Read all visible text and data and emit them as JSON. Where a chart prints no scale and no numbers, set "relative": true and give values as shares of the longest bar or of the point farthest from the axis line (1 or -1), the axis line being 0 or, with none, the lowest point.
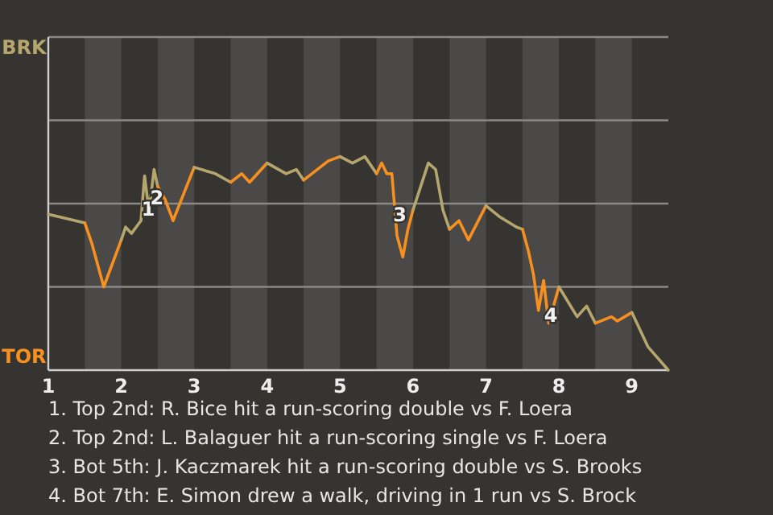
{
  "chart_data": {
    "type": "line",
    "relative": true,
    "xlim": [
      1,
      9.5
    ],
    "xticks": [
      1,
      2,
      3,
      4,
      5,
      6,
      7,
      8,
      9
    ],
    "marker": "none",
    "line_style": "solid",
    "ref_lines": [
      {
        "axis": "y",
        "value": 1.56,
        "label": "BRK",
        "color": "#8a8986"
      },
      {
        "axis": "y",
        "value": 1.17,
        "color": "#8a8986"
      },
      {
        "axis": "y",
        "value": 0.78,
        "color": "#8a8986"
      },
      {
        "axis": "y",
        "value": 0.39,
        "color": "#8a8986"
      }
    ],
    "bands": [
      {
        "axis": "x",
        "from": 1.5,
        "to": 2,
        "color": "#4a4947"
      },
      {
        "axis": "x",
        "from": 2.5,
        "to": 3,
        "color": "#4a4947"
      },
      {
        "axis": "x",
        "from": 3.5,
        "to": 4,
        "color": "#4a4947"
      },
      {
        "axis": "x",
        "from": 4.5,
        "to": 5,
        "color": "#4a4947"
      },
      {
        "axis": "x",
        "from": 5.5,
        "to": 6,
        "color": "#4a4947"
      },
      {
        "axis": "x",
        "from": 6.5,
        "to": 7,
        "color": "#4a4947"
      },
      {
        "axis": "x",
        "from": 7.5,
        "to": 8,
        "color": "#4a4947"
      },
      {
        "axis": "x",
        "from": 8.5,
        "to": 9,
        "color": "#4a4947"
      }
    ],
    "series": [
      {
        "color": "#b5a66e",
        "x": [
          1,
          1.5
        ],
        "values": [
          0.73,
          0.69
        ]
      },
      {
        "color": "#f7901e",
        "x": [
          1.5,
          1.6,
          1.76,
          2
        ],
        "values": [
          0.69,
          0.59,
          0.39,
          0.61
        ]
      },
      {
        "color": "#b5a66e",
        "x": [
          2,
          2.06,
          2.14,
          2.27,
          2.32,
          2.36,
          2.4,
          2.45,
          2.5
        ],
        "values": [
          0.61,
          0.67,
          0.64,
          0.7,
          0.91,
          0.8,
          0.8,
          0.94,
          0.86
        ]
      },
      {
        "color": "#f7901e",
        "x": [
          2.5,
          2.6,
          2.71,
          3
        ],
        "values": [
          0.86,
          0.8,
          0.7,
          0.95
        ]
      },
      {
        "color": "#b5a66e",
        "x": [
          3,
          3.29,
          3.5
        ],
        "values": [
          0.95,
          0.92,
          0.88
        ]
      },
      {
        "color": "#f7901e",
        "x": [
          3.5,
          3.65,
          3.76,
          4
        ],
        "values": [
          0.88,
          0.92,
          0.88,
          0.97
        ]
      },
      {
        "color": "#b5a66e",
        "x": [
          4,
          4.26,
          4.4,
          4.5
        ],
        "values": [
          0.97,
          0.92,
          0.94,
          0.89
        ]
      },
      {
        "color": "#f7901e",
        "x": [
          4.5,
          4.84,
          5
        ],
        "values": [
          0.89,
          0.98,
          1
        ]
      },
      {
        "color": "#b5a66e",
        "x": [
          5,
          5.17,
          5.34,
          5.5
        ],
        "values": [
          1,
          0.97,
          1,
          0.92
        ]
      },
      {
        "color": "#f7901e",
        "x": [
          5.5,
          5.57,
          5.64,
          5.71,
          5.78,
          5.86,
          5.93,
          6
        ],
        "values": [
          0.92,
          0.97,
          0.92,
          0.92,
          0.63,
          0.53,
          0.66,
          0.75
        ]
      },
      {
        "color": "#b5a66e",
        "x": [
          6,
          6.21,
          6.31,
          6.41,
          6.5
        ],
        "values": [
          0.75,
          0.97,
          0.94,
          0.75,
          0.66
        ]
      },
      {
        "color": "#f7901e",
        "x": [
          6.5,
          6.63,
          6.76,
          7
        ],
        "values": [
          0.66,
          0.7,
          0.61,
          0.77
        ]
      },
      {
        "color": "#b5a66e",
        "x": [
          7,
          7.18,
          7.42,
          7.5
        ],
        "values": [
          0.77,
          0.72,
          0.67,
          0.66
        ]
      },
      {
        "color": "#f7901e",
        "x": [
          7.5,
          7.58,
          7.65,
          7.72,
          7.79,
          7.86,
          8
        ],
        "values": [
          0.66,
          0.56,
          0.45,
          0.28,
          0.42,
          0.22,
          0.39
        ]
      },
      {
        "color": "#b5a66e",
        "x": [
          8,
          8.25,
          8.38,
          8.5
        ],
        "values": [
          0.39,
          0.25,
          0.3,
          0.22
        ]
      },
      {
        "color": "#f7901e",
        "x": [
          8.5,
          8.72,
          8.8,
          9
        ],
        "values": [
          0.22,
          0.25,
          0.23,
          0.27
        ]
      },
      {
        "color": "#b5a66e",
        "x": [
          9,
          9.22,
          9.5
        ],
        "values": [
          0.27,
          0.11,
          0
        ]
      }
    ],
    "annotations": [
      "TOR",
      {
        "text": "1",
        "x": 2.37,
        "y": 0.75
      },
      {
        "text": "2",
        "x": 2.49,
        "y": 0.8
      },
      {
        "text": "3",
        "x": 5.82,
        "y": 0.72
      },
      {
        "text": "4",
        "x": 7.89,
        "y": 0.25
      },
      "1. Top 2nd: R. Bice hit a run-scoring double vs F. Loera",
      "2. Top 2nd: L. Balaguer hit a run-scoring single vs F. Loera",
      "3. Bot 5th: J. Kaczmarek hit a run-scoring double vs S. Brooks",
      "4. Bot 7th: E. Simon drew a walk, driving in 1 run vs S. Brock"
    ]
  }
}
